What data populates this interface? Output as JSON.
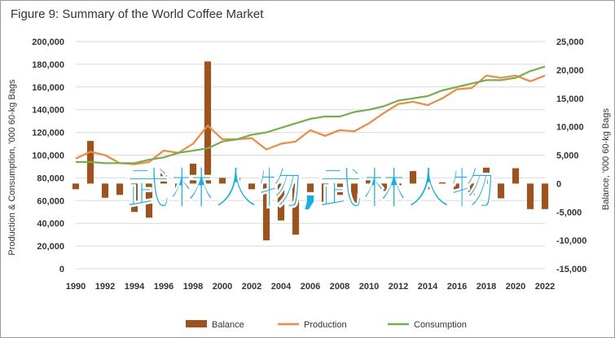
{
  "title": "Figure 9: Summary of the World Coffee Market",
  "overlay_text": "武林人物,武林人物",
  "colors": {
    "balance": "#a0521a",
    "production": "#ef8a3e",
    "consumption": "#73b04a",
    "overlay": "#12b0e8",
    "grid": "#d9d9d9"
  },
  "chart_data": {
    "type": "bar+line",
    "title": "Figure 9: Summary of the World Coffee Market",
    "left_axis_label": "Production & Consumption, '000 60-kg Bags",
    "right_axis_label": "Balance, '000 60-kg Bags",
    "left_ylim": [
      0,
      200000
    ],
    "left_ticks": [
      "0",
      "20,000",
      "40,000",
      "60,000",
      "80,000",
      "100,000",
      "120,000",
      "140,000",
      "160,000",
      "180,000",
      "200,000"
    ],
    "right_ylim": [
      -15000,
      25000
    ],
    "right_ticks": [
      "-15,000",
      "-10,000",
      "-5,000",
      "0",
      "5,000",
      "10,000",
      "15,000",
      "20,000",
      "25,000"
    ],
    "x_ticks": [
      "1990",
      "1992",
      "1994",
      "1996",
      "1998",
      "2000",
      "2002",
      "2004",
      "2006",
      "2008",
      "2010",
      "2012",
      "2014",
      "2016",
      "2018",
      "2020",
      "2022"
    ],
    "x": [
      1990,
      1991,
      1992,
      1993,
      1994,
      1995,
      1996,
      1997,
      1998,
      1999,
      2000,
      2001,
      2002,
      2003,
      2004,
      2005,
      2006,
      2007,
      2008,
      2009,
      2010,
      2011,
      2012,
      2013,
      2014,
      2015,
      2016,
      2017,
      2018,
      2019,
      2020,
      2021,
      2022
    ],
    "grid": true,
    "legend_position": "bottom",
    "series": [
      {
        "name": "Balance",
        "type": "bar",
        "axis": "right",
        "values": [
          -1000,
          7500,
          -2500,
          -2000,
          -5000,
          -6000,
          2000,
          -1000,
          3500,
          21500,
          1000,
          1000,
          -1000,
          -10000,
          -6500,
          -9000,
          -1500,
          -4000,
          -2000,
          -4000,
          800,
          -1300,
          -300,
          2200,
          -1000,
          200,
          -1200,
          -2000,
          2800,
          -2600,
          2700,
          -4500,
          -4500
        ]
      },
      {
        "name": "Production",
        "type": "line",
        "axis": "left",
        "values": [
          97000,
          103000,
          100000,
          93000,
          92000,
          94000,
          104000,
          102000,
          110000,
          126000,
          114000,
          114000,
          115000,
          105000,
          110000,
          112000,
          122000,
          117000,
          122000,
          121000,
          128000,
          137000,
          145000,
          147000,
          144000,
          150000,
          158000,
          159000,
          170000,
          168000,
          170000,
          165000,
          170000
        ]
      },
      {
        "name": "Consumption",
        "type": "line",
        "axis": "left",
        "values": [
          94000,
          94000,
          93000,
          93000,
          93000,
          96000,
          98000,
          102000,
          104000,
          106000,
          112000,
          114000,
          118000,
          120000,
          124000,
          128000,
          132000,
          134000,
          134000,
          138000,
          140000,
          143000,
          148000,
          150000,
          152000,
          157000,
          160000,
          163000,
          166000,
          166000,
          168000,
          174000,
          178000
        ]
      }
    ]
  }
}
